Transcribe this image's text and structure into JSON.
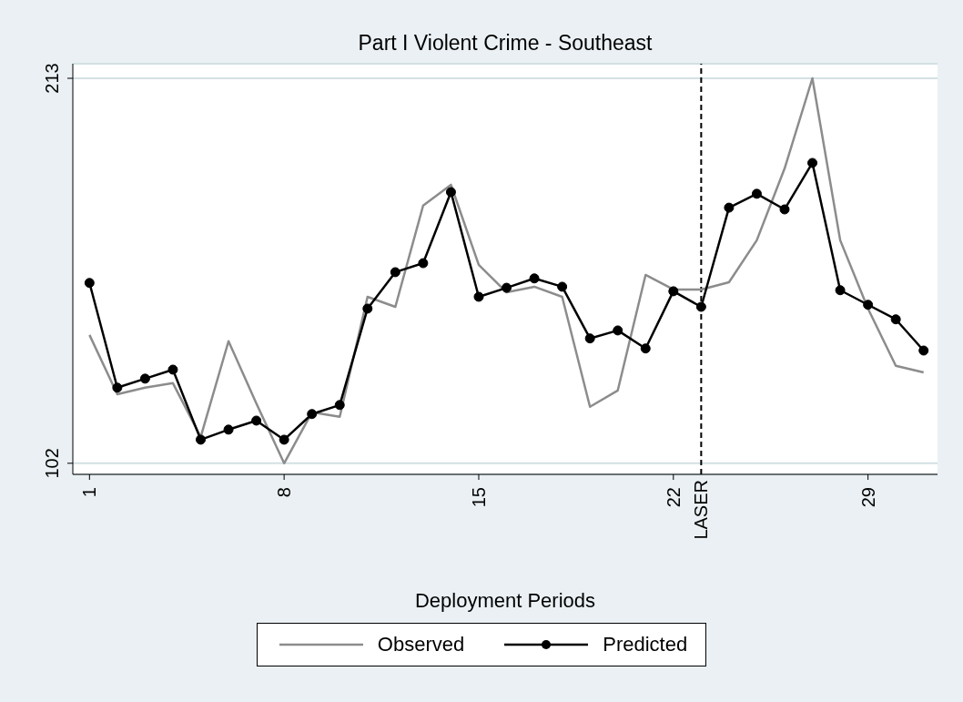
{
  "chart_data": {
    "type": "line",
    "title": "Part I Violent Crime - Southeast",
    "xlabel": "Deployment Periods",
    "x": [
      1,
      2,
      3,
      4,
      5,
      6,
      7,
      8,
      9,
      10,
      11,
      12,
      13,
      14,
      15,
      16,
      17,
      18,
      19,
      20,
      21,
      22,
      23,
      24,
      25,
      26,
      27,
      28,
      29,
      30,
      31
    ],
    "series": [
      {
        "name": "Observed",
        "color": "#8c8c8c",
        "marker": "none",
        "values": [
          139.0,
          121.9,
          123.8,
          125.1,
          109.6,
          137.2,
          119.3,
          102,
          116.7,
          115.4,
          150.0,
          147.1,
          176.3,
          182.3,
          159.2,
          151.3,
          152.9,
          150.0,
          118.3,
          123.0,
          156.3,
          152.1,
          152.1,
          154.2,
          166.3,
          187.0,
          213,
          166.3,
          146.6,
          130.1,
          128.2
        ]
      },
      {
        "name": "Predicted",
        "color": "#000000",
        "marker": "circle",
        "values": [
          154.0,
          123.8,
          126.4,
          129.0,
          108.8,
          111.7,
          114.3,
          108.8,
          116.2,
          118.8,
          146.6,
          157.1,
          159.7,
          180.2,
          150.0,
          152.6,
          155.3,
          152.9,
          138.0,
          140.3,
          135.1,
          151.6,
          147.1,
          175.7,
          179.7,
          175.2,
          188.6,
          151.9,
          147.7,
          143.5,
          134.5
        ]
      }
    ],
    "xlim": [
      0.4,
      31.5
    ],
    "xticks": [
      1,
      8,
      15,
      22,
      29
    ],
    "ylim": [
      98.8,
      217.2
    ],
    "yticks": [
      102,
      213
    ],
    "ref_lines": [
      {
        "axis": "x",
        "value": 23,
        "label": "LASER",
        "color": "#000000",
        "line_style": "dashed"
      }
    ],
    "grid": "y",
    "legend": "bottom",
    "line_style": "solid"
  }
}
